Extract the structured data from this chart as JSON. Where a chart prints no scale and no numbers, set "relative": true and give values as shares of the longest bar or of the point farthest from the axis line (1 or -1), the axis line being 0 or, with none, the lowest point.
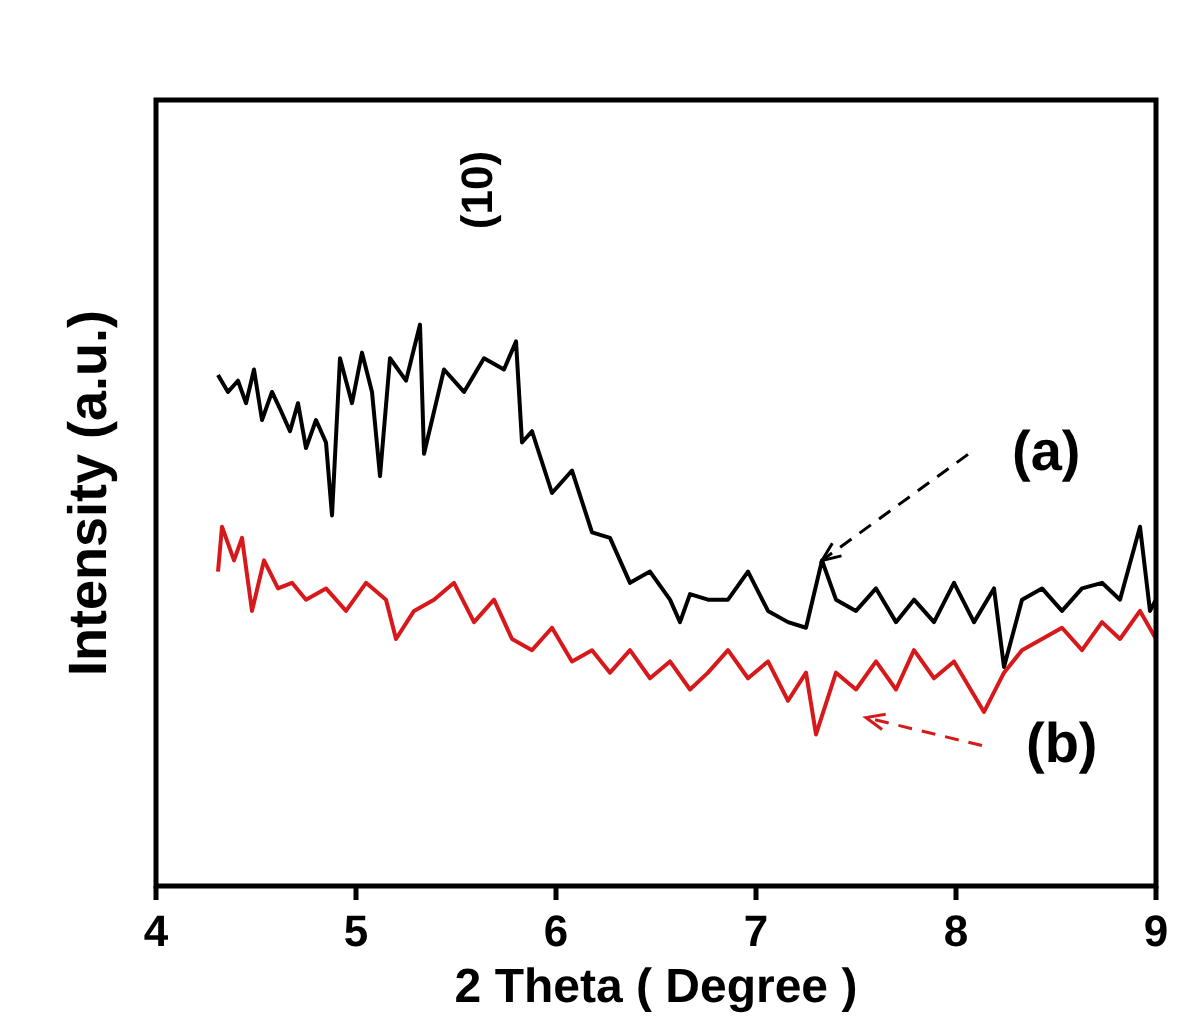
{
  "chart_data": {
    "type": "line",
    "relative": true,
    "xlabel": "2 Theta ( Degree )",
    "ylabel": "Intensity (a.u.)",
    "xlim": [
      4,
      9
    ],
    "xticks": [
      4,
      5,
      6,
      7,
      8,
      9
    ],
    "tick_labels": "x",
    "grid": false,
    "line_style": "solid",
    "annotations": [
      "(10)",
      {
        "text": "(a)",
        "x": 7.33,
        "y": 0.58
      },
      "(b)"
    ],
    "series": [
      {
        "color": "#000000",
        "x": [
          4.31,
          4.36,
          4.41,
          4.45,
          4.49,
          4.53,
          4.58,
          4.62,
          4.67,
          4.71,
          4.75,
          4.8,
          4.85,
          4.88,
          4.92,
          4.98,
          5.03,
          5.08,
          5.12,
          5.17,
          5.25,
          5.32,
          5.34,
          5.44,
          5.54,
          5.64,
          5.74,
          5.8,
          5.83,
          5.88,
          5.98,
          6.08,
          6.18,
          6.27,
          6.37,
          6.47,
          6.57,
          6.62,
          6.67,
          6.76,
          6.86,
          6.96,
          7.06,
          7.16,
          7.25,
          7.33,
          7.4,
          7.5,
          7.6,
          7.7,
          7.79,
          7.89,
          7.99,
          8.09,
          8.19,
          8.24,
          8.33,
          8.43,
          8.53,
          8.63,
          8.73,
          8.82,
          8.92,
          8.97,
          9.0
        ],
        "values": [
          0.91,
          0.88,
          0.9,
          0.86,
          0.92,
          0.83,
          0.88,
          0.85,
          0.81,
          0.86,
          0.78,
          0.83,
          0.79,
          0.66,
          0.94,
          0.86,
          0.95,
          0.88,
          0.73,
          0.94,
          0.9,
          1.0,
          0.77,
          0.92,
          0.88,
          0.94,
          0.92,
          0.97,
          0.79,
          0.81,
          0.7,
          0.74,
          0.63,
          0.62,
          0.54,
          0.56,
          0.51,
          0.47,
          0.52,
          0.51,
          0.51,
          0.56,
          0.49,
          0.47,
          0.46,
          0.58,
          0.51,
          0.49,
          0.53,
          0.47,
          0.51,
          0.47,
          0.54,
          0.47,
          0.53,
          0.39,
          0.51,
          0.53,
          0.49,
          0.53,
          0.54,
          0.51,
          0.64,
          0.49,
          0.51
        ]
      },
      {
        "color": "#d7191c",
        "x": [
          4.31,
          4.33,
          4.39,
          4.43,
          4.48,
          4.54,
          4.61,
          4.68,
          4.75,
          4.85,
          4.95,
          5.05,
          5.15,
          5.2,
          5.29,
          5.39,
          5.49,
          5.59,
          5.69,
          5.78,
          5.88,
          5.98,
          6.08,
          6.18,
          6.27,
          6.37,
          6.47,
          6.57,
          6.67,
          6.76,
          6.86,
          6.96,
          7.06,
          7.16,
          7.25,
          7.3,
          7.4,
          7.5,
          7.6,
          7.7,
          7.79,
          7.89,
          7.99,
          8.14,
          8.24,
          8.33,
          8.43,
          8.53,
          8.63,
          8.73,
          8.82,
          8.92,
          9.0
        ],
        "values": [
          0.56,
          0.64,
          0.58,
          0.62,
          0.49,
          0.58,
          0.53,
          0.54,
          0.51,
          0.53,
          0.49,
          0.54,
          0.51,
          0.44,
          0.49,
          0.51,
          0.54,
          0.47,
          0.51,
          0.44,
          0.42,
          0.46,
          0.4,
          0.42,
          0.38,
          0.42,
          0.37,
          0.4,
          0.35,
          0.38,
          0.42,
          0.37,
          0.4,
          0.33,
          0.38,
          0.27,
          0.38,
          0.35,
          0.4,
          0.35,
          0.42,
          0.37,
          0.4,
          0.31,
          0.38,
          0.42,
          0.44,
          0.46,
          0.42,
          0.47,
          0.44,
          0.49,
          0.44
        ]
      }
    ]
  }
}
